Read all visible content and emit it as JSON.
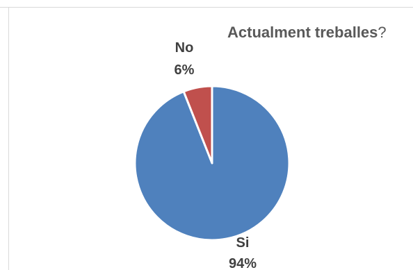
{
  "chart_data": {
    "type": "pie",
    "title": "Actualment treballes",
    "title_suffix": "?",
    "categories": [
      "Si",
      "No"
    ],
    "values": [
      94,
      6
    ],
    "labels": [
      {
        "name": "Si",
        "pct": "94%"
      },
      {
        "name": "No",
        "pct": "6%"
      }
    ],
    "colors": [
      "#4f81bd",
      "#c0504d"
    ],
    "legend": "none"
  }
}
